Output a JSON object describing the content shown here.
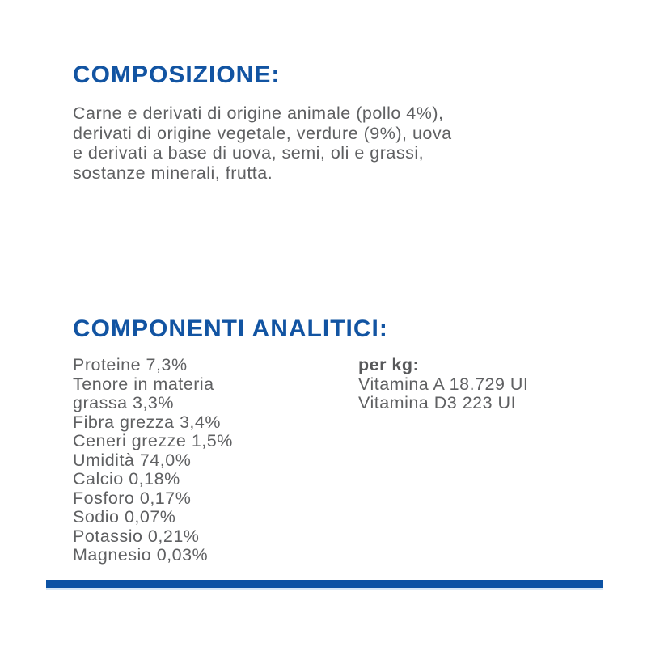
{
  "colors": {
    "heading_blue": "#1254a2",
    "body_gray": "#5f6062",
    "bar_blue": "#0c52a4"
  },
  "composition": {
    "heading": "COMPOSIZIONE:",
    "lines": [
      "Carne e derivati di origine animale (pollo 4%),",
      "derivati di origine vegetale, verdure (9%), uova",
      "e derivati a base di uova, semi, oli e grassi,",
      "sostanze minerali, frutta."
    ]
  },
  "analytics": {
    "heading": "COMPONENTI ANALITICI:",
    "left_lines": [
      "Proteine 7,3%",
      "Tenore in materia",
      "grassa 3,3%",
      "Fibra grezza 3,4%",
      "Ceneri grezze 1,5%",
      "Umidità 74,0%",
      "Calcio 0,18%",
      "Fosforo 0,17%",
      "Sodio 0,07%",
      "Potassio 0,21%",
      "Magnesio 0,03%"
    ],
    "per_kg": {
      "label": "per kg:",
      "lines": [
        "Vitamina A 18.729 UI",
        "Vitamina D3 223 UI"
      ]
    }
  }
}
